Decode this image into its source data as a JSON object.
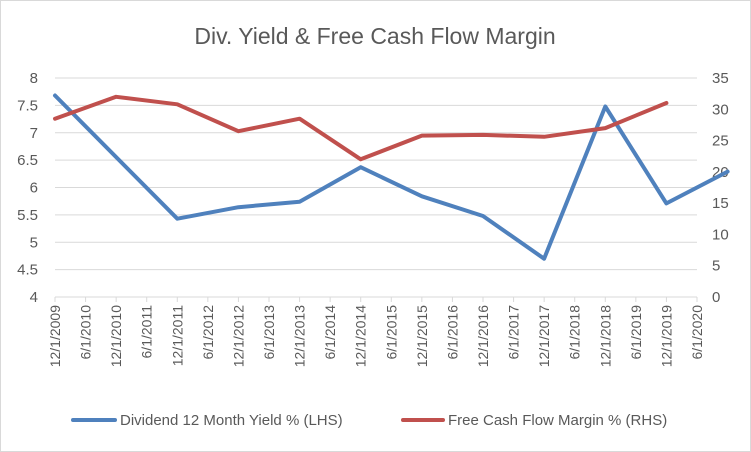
{
  "chart_data": {
    "type": "line",
    "title": "Div. Yield & Free Cash Flow Margin",
    "x": [
      "12/1/2009",
      "6/1/2010",
      "12/1/2010",
      "6/1/2011",
      "12/1/2011",
      "6/1/2012",
      "12/1/2012",
      "6/1/2013",
      "12/1/2013",
      "6/1/2014",
      "12/1/2014",
      "6/1/2015",
      "12/1/2015",
      "6/1/2016",
      "12/1/2016",
      "6/1/2017",
      "12/1/2017",
      "6/1/2018",
      "12/1/2018",
      "6/1/2019",
      "12/1/2019",
      "6/1/2020"
    ],
    "y_left_ticks": [
      "4",
      "4.5",
      "5",
      "5.5",
      "6",
      "6.5",
      "7",
      "7.5",
      "8"
    ],
    "y_right_ticks": [
      "0",
      "5",
      "10",
      "15",
      "20",
      "25",
      "30",
      "35"
    ],
    "ylim_left": [
      4,
      8
    ],
    "ylim_right": [
      0,
      35
    ],
    "grid": true,
    "legend": "bottom",
    "series": [
      {
        "name": "Dividend 12 Month Yield % (LHS)",
        "axis": "left",
        "color": "#4f81bd",
        "points": [
          [
            0,
            7.68
          ],
          [
            4,
            5.43
          ],
          [
            6,
            5.64
          ],
          [
            8,
            5.74
          ],
          [
            10,
            6.37
          ],
          [
            12,
            5.84
          ],
          [
            14,
            5.48
          ],
          [
            16,
            4.7
          ],
          [
            18,
            7.48
          ],
          [
            20,
            5.71
          ],
          [
            22,
            6.29
          ]
        ]
      },
      {
        "name": "Free Cash Flow Margin % (RHS)",
        "axis": "right",
        "color": "#c0504d",
        "points": [
          [
            0,
            28.5
          ],
          [
            2,
            32
          ],
          [
            4,
            30.8
          ],
          [
            6,
            26.5
          ],
          [
            8,
            28.5
          ],
          [
            10,
            22
          ],
          [
            12,
            25.8
          ],
          [
            14,
            25.9
          ],
          [
            16,
            25.6
          ],
          [
            18,
            27
          ],
          [
            20,
            31
          ]
        ]
      }
    ]
  }
}
